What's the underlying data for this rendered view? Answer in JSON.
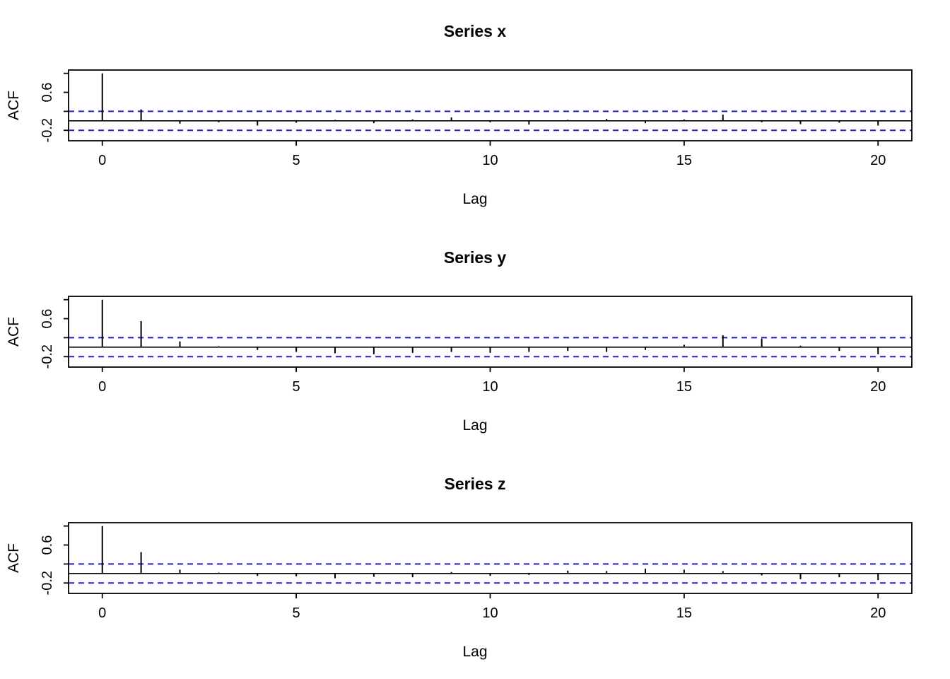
{
  "colors": {
    "background": "#ffffff",
    "spike": "#000000",
    "axis": "#000000",
    "conf_line": "#2020cc"
  },
  "chart_data": [
    {
      "type": "bar",
      "chart_kind": "autocorrelation",
      "title": "Series x",
      "xlabel": "Lag",
      "ylabel": "ACF",
      "xlim": [
        -0.87,
        20.87
      ],
      "ylim": [
        -0.42,
        1.07
      ],
      "grid": false,
      "conf_bound": 0.2,
      "x_ticks": [
        {
          "value": 0,
          "label": "0"
        },
        {
          "value": 5,
          "label": "5"
        },
        {
          "value": 10,
          "label": "10"
        },
        {
          "value": 15,
          "label": "15"
        },
        {
          "value": 20,
          "label": "20"
        }
      ],
      "y_ticks": [
        {
          "value": -0.2,
          "label": "-0.2"
        },
        {
          "value": 0.2,
          "label": ""
        },
        {
          "value": 0.6,
          "label": "0.6"
        },
        {
          "value": 1.0,
          "label": ""
        }
      ],
      "lags": [
        0,
        1,
        2,
        3,
        4,
        5,
        6,
        7,
        8,
        9,
        10,
        11,
        12,
        13,
        14,
        15,
        16,
        17,
        18,
        19,
        20
      ],
      "values": [
        1.0,
        0.24,
        -0.06,
        -0.03,
        -0.1,
        -0.04,
        0.02,
        -0.05,
        0.03,
        0.07,
        -0.03,
        -0.08,
        0.02,
        0.04,
        -0.05,
        0.03,
        0.13,
        -0.03,
        -0.07,
        -0.04,
        -0.1
      ]
    },
    {
      "type": "bar",
      "chart_kind": "autocorrelation",
      "title": "Series y",
      "xlabel": "Lag",
      "ylabel": "ACF",
      "xlim": [
        -0.87,
        20.87
      ],
      "ylim": [
        -0.42,
        1.07
      ],
      "grid": false,
      "conf_bound": 0.2,
      "x_ticks": [
        {
          "value": 0,
          "label": "0"
        },
        {
          "value": 5,
          "label": "5"
        },
        {
          "value": 10,
          "label": "10"
        },
        {
          "value": 15,
          "label": "15"
        },
        {
          "value": 20,
          "label": "20"
        }
      ],
      "y_ticks": [
        {
          "value": -0.2,
          "label": "-0.2"
        },
        {
          "value": 0.2,
          "label": ""
        },
        {
          "value": 0.6,
          "label": "0.6"
        },
        {
          "value": 1.0,
          "label": ""
        }
      ],
      "lags": [
        0,
        1,
        2,
        3,
        4,
        5,
        6,
        7,
        8,
        9,
        10,
        11,
        12,
        13,
        14,
        15,
        16,
        17,
        18,
        19,
        20
      ],
      "values": [
        1.0,
        0.55,
        0.12,
        0.02,
        -0.06,
        -0.1,
        -0.13,
        -0.15,
        -0.12,
        -0.1,
        -0.12,
        -0.1,
        -0.08,
        -0.1,
        -0.06,
        0.05,
        0.25,
        0.18,
        0.03,
        -0.08,
        -0.15
      ]
    },
    {
      "type": "bar",
      "chart_kind": "autocorrelation",
      "title": "Series z",
      "xlabel": "Lag",
      "ylabel": "ACF",
      "xlim": [
        -0.87,
        20.87
      ],
      "ylim": [
        -0.42,
        1.07
      ],
      "grid": false,
      "conf_bound": 0.2,
      "x_ticks": [
        {
          "value": 0,
          "label": "0"
        },
        {
          "value": 5,
          "label": "5"
        },
        {
          "value": 10,
          "label": "10"
        },
        {
          "value": 15,
          "label": "15"
        },
        {
          "value": 20,
          "label": "20"
        }
      ],
      "y_ticks": [
        {
          "value": -0.2,
          "label": "-0.2"
        },
        {
          "value": 0.2,
          "label": ""
        },
        {
          "value": 0.6,
          "label": "0.6"
        },
        {
          "value": 1.0,
          "label": ""
        }
      ],
      "lags": [
        0,
        1,
        2,
        3,
        4,
        5,
        6,
        7,
        8,
        9,
        10,
        11,
        12,
        13,
        14,
        15,
        16,
        17,
        18,
        19,
        20
      ],
      "values": [
        1.0,
        0.45,
        0.08,
        0.02,
        -0.05,
        -0.06,
        -0.1,
        -0.07,
        -0.08,
        0.03,
        -0.05,
        -0.03,
        0.06,
        0.05,
        0.1,
        0.08,
        0.05,
        -0.04,
        -0.12,
        -0.08,
        -0.14
      ]
    }
  ]
}
